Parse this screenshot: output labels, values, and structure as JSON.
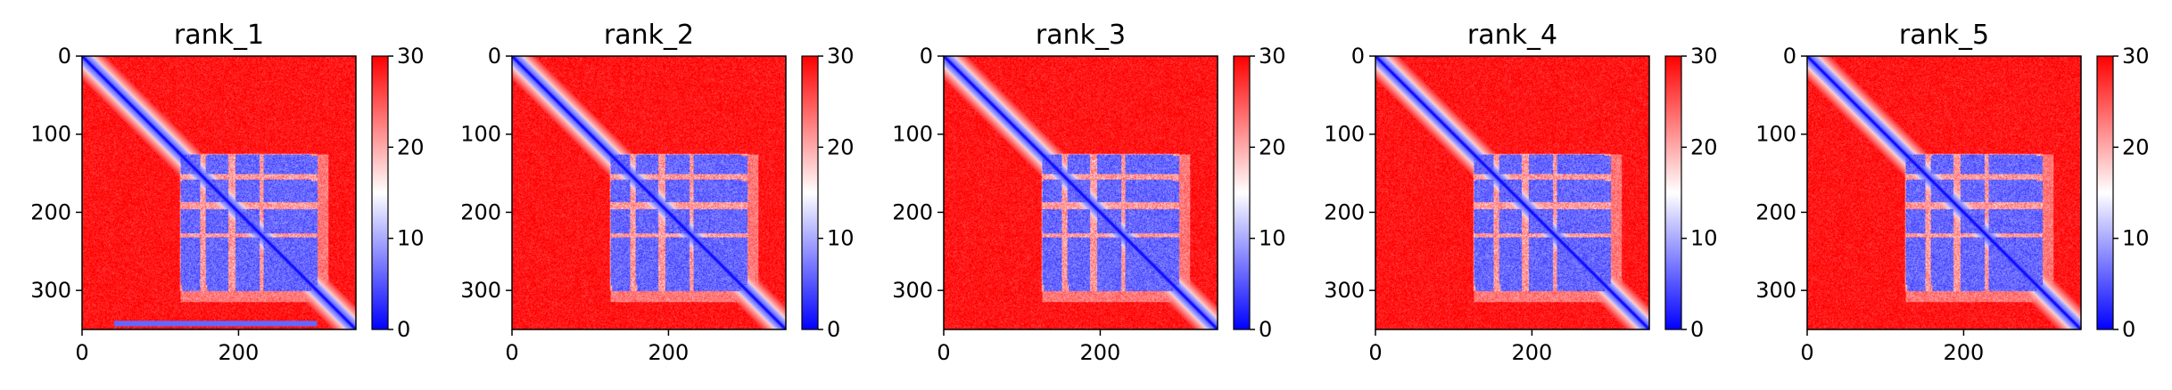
{
  "chart_data": {
    "type": "heatmap",
    "description_colormap": "bwr",
    "colors": {
      "low": "#0000ff",
      "mid": "#ffffff",
      "high": "#ff0000"
    },
    "matrix_size": 350,
    "x_ticks": [
      0,
      200
    ],
    "y_ticks": [
      0,
      100,
      200,
      300
    ],
    "colorbar": {
      "range": [
        0,
        30
      ],
      "ticks": [
        0,
        10,
        20,
        30
      ]
    },
    "panels": [
      {
        "title": "rank_1",
        "variant": 1
      },
      {
        "title": "rank_2",
        "variant": 2
      },
      {
        "title": "rank_3",
        "variant": 3
      },
      {
        "title": "rank_4",
        "variant": 4
      },
      {
        "title": "rank_5",
        "variant": 5
      }
    ]
  }
}
